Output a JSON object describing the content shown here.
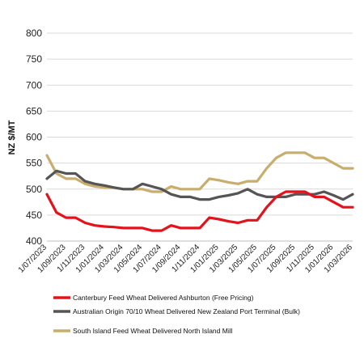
{
  "chart_data": {
    "type": "line",
    "title": "",
    "xlabel": "",
    "ylabel": "NZ $/MT",
    "ylim": [
      400,
      800
    ],
    "yticks": [
      400,
      450,
      500,
      550,
      600,
      650,
      700,
      750,
      800
    ],
    "grid": "horizontal",
    "legend_position": "bottom",
    "x": [
      "1/07/2023",
      "1/08/2023",
      "1/09/2023",
      "1/10/2023",
      "1/11/2023",
      "1/12/2023",
      "1/01/2024",
      "1/02/2024",
      "1/03/2024",
      "1/04/2024",
      "1/05/2024",
      "1/06/2024",
      "1/07/2024",
      "1/08/2024",
      "1/09/2024",
      "1/10/2024",
      "1/11/2024",
      "1/12/2024",
      "1/01/2025",
      "1/02/2025",
      "1/03/2025",
      "1/04/2025",
      "1/05/2025",
      "1/06/2025",
      "1/07/2025",
      "1/08/2025",
      "1/09/2025",
      "1/10/2025",
      "1/11/2025",
      "1/12/2025",
      "1/01/2026",
      "1/02/2026",
      "1/03/2026"
    ],
    "x_tick_labels": [
      "1/07/2023",
      "1/09/2023",
      "1/11/2023",
      "1/01/2024",
      "1/03/2024",
      "1/05/2024",
      "1/07/2024",
      "1/09/2024",
      "1/11/2024",
      "1/01/2025",
      "1/03/2025",
      "1/05/2025",
      "1/07/2025",
      "1/09/2025",
      "1/11/2025",
      "1/01/2026",
      "1/03/2026"
    ],
    "series": [
      {
        "name": "Canterbury Feed Wheat Delivered Ashburton (Free Pricing)",
        "color": "#e3121b",
        "values": [
          490,
          455,
          445,
          445,
          435,
          430,
          428,
          427,
          425,
          425,
          425,
          420,
          420,
          430,
          425,
          425,
          425,
          445,
          442,
          438,
          435,
          440,
          440,
          465,
          485,
          495,
          495,
          495,
          485,
          485,
          475,
          465,
          465
        ]
      },
      {
        "name": "Australian Origin 70/10 Wheat Delivered New Zealand Port Terminal (Bulk)",
        "color": "#555555",
        "values": [
          520,
          535,
          530,
          530,
          515,
          510,
          507,
          503,
          500,
          500,
          510,
          505,
          500,
          490,
          485,
          485,
          480,
          480,
          485,
          488,
          492,
          500,
          490,
          485,
          485,
          485,
          490,
          490,
          490,
          495,
          488,
          480,
          490
        ]
      },
      {
        "name": "South Island Feed Wheat Delivered North Island Mill",
        "color": "#c8ad6c",
        "values": [
          565,
          530,
          520,
          520,
          510,
          505,
          503,
          503,
          500,
          500,
          500,
          495,
          495,
          505,
          500,
          500,
          500,
          520,
          517,
          513,
          510,
          515,
          515,
          540,
          560,
          570,
          570,
          570,
          560,
          560,
          550,
          540,
          540
        ]
      }
    ]
  }
}
